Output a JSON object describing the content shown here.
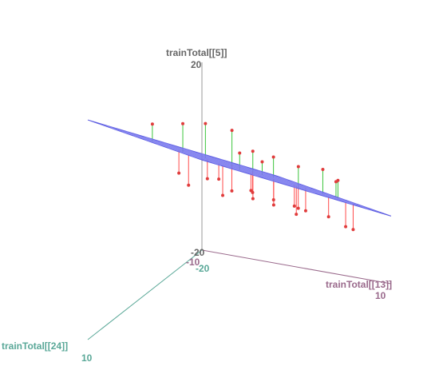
{
  "chart_data": {
    "type": "scatter3d",
    "y_label": "trainTotal[[5]]",
    "x_label": "trainTotal[[13]]",
    "z_label": "trainTotal[[24]]",
    "xlim": [
      -10,
      10
    ],
    "xticks": [
      -10,
      10
    ],
    "ylim": [
      -20,
      20
    ],
    "yticks": [
      -20,
      20
    ],
    "zlim": [
      -20,
      10
    ],
    "zticks": [
      -20,
      10
    ],
    "x": [
      -8,
      -5,
      -2,
      0,
      2,
      4,
      6,
      8,
      -6,
      -3,
      1,
      5,
      9,
      -9,
      -4,
      3,
      7,
      -1,
      0,
      -7,
      4,
      6,
      -2,
      2,
      8,
      -5,
      -8,
      3,
      -4,
      5
    ],
    "y": [
      14,
      2,
      16,
      -3,
      12,
      -1,
      8,
      -6,
      8,
      -4,
      3,
      -5,
      9,
      -2,
      18,
      -2,
      4,
      10,
      7,
      -6,
      15,
      -8,
      0,
      2,
      7,
      4,
      19,
      9,
      6,
      3
    ],
    "z": [
      -10,
      -12,
      -8,
      -14,
      -6,
      -10,
      -12,
      -15,
      -4,
      -16,
      -18,
      -16,
      -8,
      -14,
      -6,
      -13,
      -5,
      -11,
      -3,
      -18,
      -4,
      -18,
      -13,
      -9,
      -11,
      -9,
      -2,
      -1,
      -15,
      -7
    ],
    "plane_coefficients": {
      "intercept": 15.2,
      "x": -0.24,
      "z": 0.92
    },
    "point_color": "#e03c3c",
    "above_color": "#3cc43c",
    "below_color": "#ff4a4a",
    "plane_color": "#5a5ae0",
    "y_label_color": "#666666",
    "x_label_color": "#9a6a8c",
    "z_label_color": "#5aa898"
  }
}
